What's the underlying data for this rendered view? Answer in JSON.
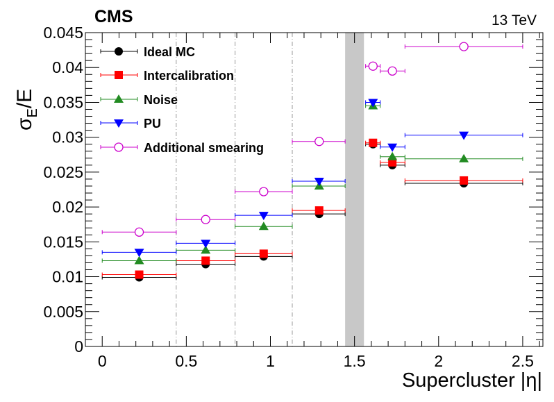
{
  "chart_data": {
    "type": "scatter",
    "experiment_label": "CMS",
    "energy_label": "13 TeV",
    "ylabel_main": "σ",
    "ylabel_sub": "E",
    "ylabel_rest": "/E",
    "xlabel": "Supercluster |η|",
    "xlim": [
      -0.1,
      2.62
    ],
    "ylim": [
      0,
      0.045
    ],
    "x_ticks": [
      0,
      0.5,
      1,
      1.5,
      2,
      2.5
    ],
    "x_tick_labels": [
      "0",
      "0.5",
      "1",
      "1.5",
      "2",
      "2.5"
    ],
    "y_ticks": [
      0,
      0.005,
      0.01,
      0.015,
      0.02,
      0.025,
      0.03,
      0.035,
      0.04,
      0.045
    ],
    "y_tick_labels": [
      "0",
      "0.005",
      "0.01",
      "0.015",
      "0.02",
      "0.025",
      "0.03",
      "0.035",
      "0.04",
      "0.045"
    ],
    "gap_band": [
      1.4442,
      1.556
    ],
    "gap_band_color": "#c8c8c8",
    "dashed_lines_x": [
      0.44,
      0.79,
      1.13
    ],
    "legend_position": "top-left",
    "bins": [
      {
        "x": 0.22,
        "xlo": 0.0,
        "xhi": 0.44
      },
      {
        "x": 0.615,
        "xlo": 0.44,
        "xhi": 0.79
      },
      {
        "x": 0.96,
        "xlo": 0.79,
        "xhi": 1.13
      },
      {
        "x": 1.29,
        "xlo": 1.13,
        "xhi": 1.4442
      },
      {
        "x": 1.61,
        "xlo": 1.566,
        "xhi": 1.653
      },
      {
        "x": 1.725,
        "xlo": 1.653,
        "xhi": 1.8
      },
      {
        "x": 2.15,
        "xlo": 1.8,
        "xhi": 2.5
      }
    ],
    "series": [
      {
        "name": "Ideal MC",
        "marker": "circle-filled",
        "color": "#000000",
        "values": [
          0.0099,
          0.0118,
          0.0129,
          0.019,
          0.029,
          0.026,
          0.0234
        ]
      },
      {
        "name": "Intercalibration",
        "marker": "square-filled",
        "color": "#ff0000",
        "values": [
          0.0103,
          0.0123,
          0.0133,
          0.0195,
          0.0292,
          0.0264,
          0.0238
        ]
      },
      {
        "name": "Noise",
        "marker": "triangle-up",
        "color": "#228b22",
        "values": [
          0.0123,
          0.0138,
          0.0172,
          0.023,
          0.0345,
          0.0272,
          0.0269
        ]
      },
      {
        "name": "PU",
        "marker": "triangle-down",
        "color": "#0000ff",
        "values": [
          0.0135,
          0.0148,
          0.0188,
          0.0237,
          0.035,
          0.0286,
          0.0303
        ]
      },
      {
        "name": "Additional smearing",
        "marker": "circle-open",
        "color": "#cc00cc",
        "values": [
          0.0164,
          0.0182,
          0.0222,
          0.0294,
          0.0402,
          0.0395,
          0.043
        ]
      }
    ]
  }
}
